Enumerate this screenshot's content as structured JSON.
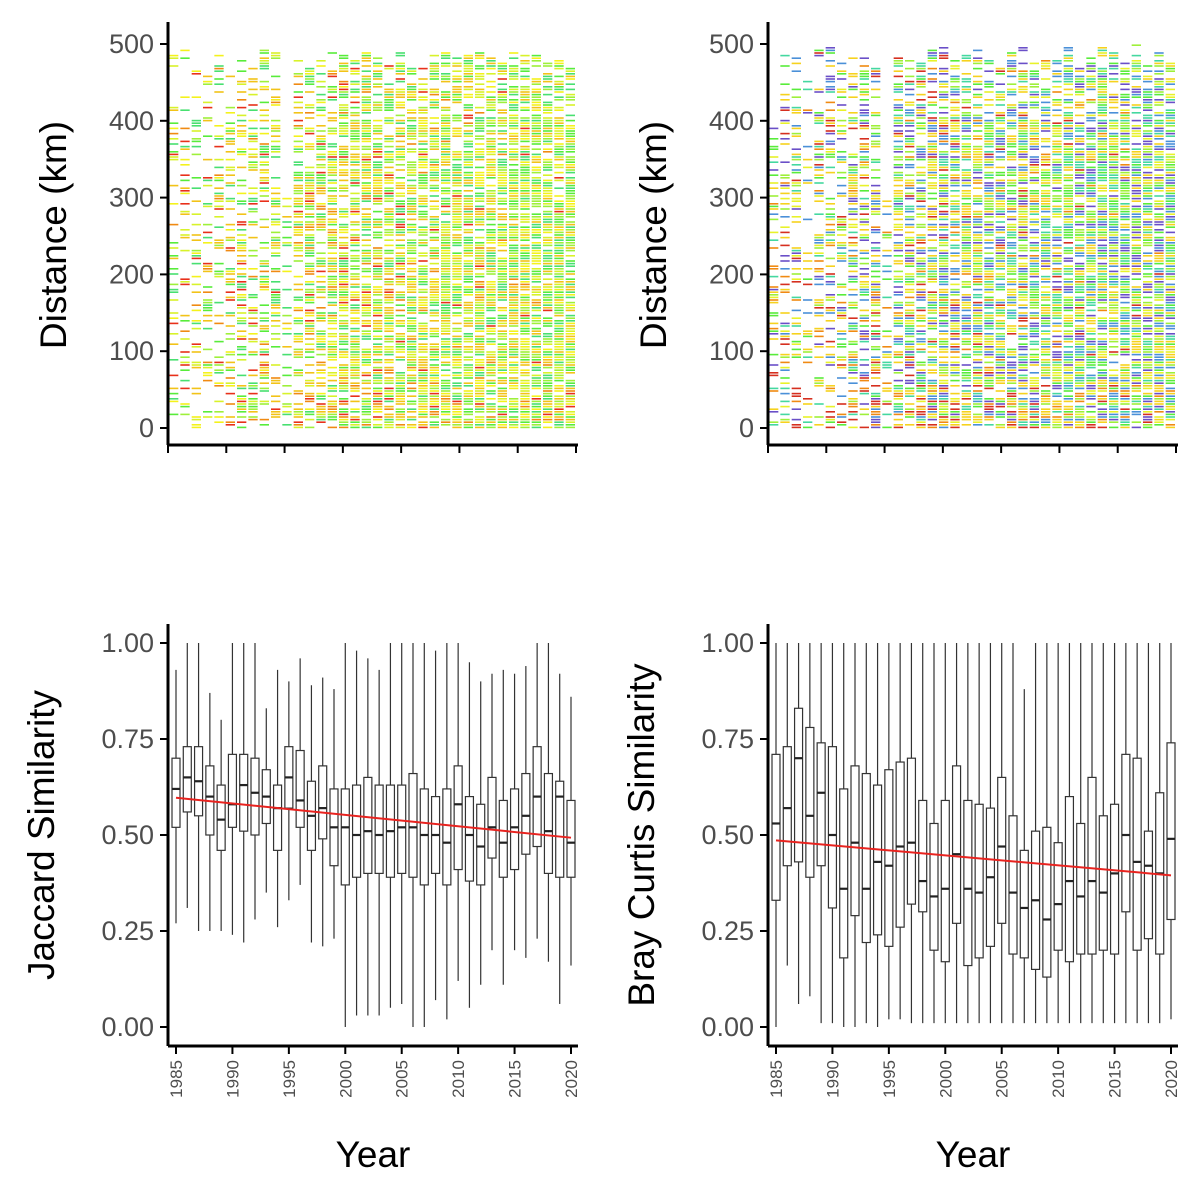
{
  "chart_data": [
    {
      "id": "distance-jaccard-tiles",
      "type": "heatmap",
      "ylabel": "Distance (km)",
      "xlabel": "",
      "x_range": [
        1985,
        2020
      ],
      "ylim": [
        0,
        500
      ],
      "y_ticks": [
        0,
        100,
        200,
        300,
        400,
        500
      ],
      "x_ticks": [
        1985,
        1990,
        1995,
        2000,
        2005,
        2010,
        2015,
        2020
      ],
      "palette": [
        "#e8301a",
        "#f08a12",
        "#f2c318",
        "#f4f21c",
        "#d8f22a",
        "#9ef03a",
        "#58ec3a",
        "#48e070"
      ],
      "density_by_year": [
        0.3,
        0.34,
        0.36,
        0.22,
        0.4,
        0.38,
        0.44,
        0.48,
        0.52,
        0.5,
        0.3,
        0.62,
        0.64,
        0.68,
        0.7,
        0.74,
        0.76,
        0.78,
        0.78,
        0.8,
        0.8,
        0.82,
        0.82,
        0.82,
        0.84,
        0.84,
        0.84,
        0.85,
        0.85,
        0.86,
        0.86,
        0.86,
        0.86,
        0.87,
        0.87,
        0.87
      ],
      "gap": {
        "year": 1995,
        "from_km": 300,
        "to_km": 500
      }
    },
    {
      "id": "distance-braycurtis-tiles",
      "type": "heatmap",
      "ylabel": "Distance (km)",
      "xlabel": "",
      "x_range": [
        1985,
        2020
      ],
      "ylim": [
        0,
        500
      ],
      "y_ticks": [
        0,
        100,
        200,
        300,
        400,
        500
      ],
      "x_ticks": [
        1985,
        1990,
        1995,
        2000,
        2005,
        2010,
        2015,
        2020
      ],
      "palette": [
        "#d62f1f",
        "#f08a12",
        "#f6d21e",
        "#e8f22a",
        "#9ef03a",
        "#58ec3a",
        "#44d8a0",
        "#4a90d8",
        "#6a4fc8"
      ],
      "density_by_year": [
        0.38,
        0.42,
        0.44,
        0.26,
        0.46,
        0.46,
        0.52,
        0.56,
        0.6,
        0.58,
        0.34,
        0.68,
        0.7,
        0.74,
        0.76,
        0.78,
        0.8,
        0.8,
        0.82,
        0.82,
        0.83,
        0.84,
        0.84,
        0.84,
        0.85,
        0.85,
        0.86,
        0.86,
        0.86,
        0.87,
        0.87,
        0.87,
        0.88,
        0.88,
        0.88,
        0.88
      ],
      "gap": {
        "year": 1995,
        "from_km": 300,
        "to_km": 500
      }
    },
    {
      "id": "jaccard-boxplot",
      "type": "box",
      "ylabel": "Jaccard Similarity",
      "xlabel": "Year",
      "ylim": [
        0,
        1
      ],
      "y_ticks": [
        "0.00",
        "0.25",
        "0.50",
        "0.75",
        "1.00"
      ],
      "x_ticks": [
        "1985",
        "1990",
        "1995",
        "2000",
        "2005",
        "2010",
        "2015",
        "2020"
      ],
      "trend_color": "#e8231f",
      "trend": {
        "x": [
          1985,
          2020
        ],
        "y": [
          0.597,
          0.493
        ]
      },
      "boxes": [
        {
          "year": 1985,
          "q1": 0.52,
          "median": 0.62,
          "q3": 0.7,
          "min": 0.27,
          "max": 0.93
        },
        {
          "year": 1986,
          "q1": 0.56,
          "median": 0.65,
          "q3": 0.73,
          "min": 0.31,
          "max": 1.0
        },
        {
          "year": 1987,
          "q1": 0.55,
          "median": 0.64,
          "q3": 0.73,
          "min": 0.25,
          "max": 1.0
        },
        {
          "year": 1988,
          "q1": 0.5,
          "median": 0.6,
          "q3": 0.68,
          "min": 0.25,
          "max": 0.87
        },
        {
          "year": 1989,
          "q1": 0.46,
          "median": 0.54,
          "q3": 0.63,
          "min": 0.25,
          "max": 0.8
        },
        {
          "year": 1990,
          "q1": 0.52,
          "median": 0.58,
          "q3": 0.71,
          "min": 0.24,
          "max": 1.0
        },
        {
          "year": 1991,
          "q1": 0.51,
          "median": 0.63,
          "q3": 0.71,
          "min": 0.22,
          "max": 1.0
        },
        {
          "year": 1992,
          "q1": 0.5,
          "median": 0.61,
          "q3": 0.7,
          "min": 0.28,
          "max": 1.0
        },
        {
          "year": 1993,
          "q1": 0.53,
          "median": 0.6,
          "q3": 0.67,
          "min": 0.35,
          "max": 0.83
        },
        {
          "year": 1994,
          "q1": 0.46,
          "median": 0.57,
          "q3": 0.63,
          "min": 0.26,
          "max": 0.93
        },
        {
          "year": 1995,
          "q1": 0.57,
          "median": 0.65,
          "q3": 0.73,
          "min": 0.33,
          "max": 0.9
        },
        {
          "year": 1996,
          "q1": 0.52,
          "median": 0.59,
          "q3": 0.72,
          "min": 0.37,
          "max": 0.96
        },
        {
          "year": 1997,
          "q1": 0.46,
          "median": 0.55,
          "q3": 0.64,
          "min": 0.22,
          "max": 0.89
        },
        {
          "year": 1998,
          "q1": 0.49,
          "median": 0.57,
          "q3": 0.68,
          "min": 0.21,
          "max": 0.91
        },
        {
          "year": 1999,
          "q1": 0.42,
          "median": 0.52,
          "q3": 0.62,
          "min": 0.23,
          "max": 0.88
        },
        {
          "year": 2000,
          "q1": 0.37,
          "median": 0.52,
          "q3": 0.62,
          "min": 0.0,
          "max": 1.0
        },
        {
          "year": 2001,
          "q1": 0.39,
          "median": 0.5,
          "q3": 0.63,
          "min": 0.03,
          "max": 0.98
        },
        {
          "year": 2002,
          "q1": 0.4,
          "median": 0.51,
          "q3": 0.65,
          "min": 0.03,
          "max": 0.96
        },
        {
          "year": 2003,
          "q1": 0.4,
          "median": 0.5,
          "q3": 0.63,
          "min": 0.03,
          "max": 0.93
        },
        {
          "year": 2004,
          "q1": 0.39,
          "median": 0.51,
          "q3": 0.63,
          "min": 0.05,
          "max": 1.0
        },
        {
          "year": 2005,
          "q1": 0.4,
          "median": 0.52,
          "q3": 0.63,
          "min": 0.06,
          "max": 1.0
        },
        {
          "year": 2006,
          "q1": 0.39,
          "median": 0.52,
          "q3": 0.66,
          "min": 0.0,
          "max": 1.0
        },
        {
          "year": 2007,
          "q1": 0.37,
          "median": 0.5,
          "q3": 0.62,
          "min": 0.0,
          "max": 1.0
        },
        {
          "year": 2008,
          "q1": 0.4,
          "median": 0.5,
          "q3": 0.6,
          "min": 0.07,
          "max": 0.98
        },
        {
          "year": 2009,
          "q1": 0.37,
          "median": 0.48,
          "q3": 0.62,
          "min": 0.02,
          "max": 1.0
        },
        {
          "year": 2010,
          "q1": 0.41,
          "median": 0.58,
          "q3": 0.68,
          "min": 0.12,
          "max": 1.0
        },
        {
          "year": 2011,
          "q1": 0.38,
          "median": 0.5,
          "q3": 0.6,
          "min": 0.05,
          "max": 0.95
        },
        {
          "year": 2012,
          "q1": 0.37,
          "median": 0.47,
          "q3": 0.58,
          "min": 0.11,
          "max": 0.9
        },
        {
          "year": 2013,
          "q1": 0.44,
          "median": 0.52,
          "q3": 0.65,
          "min": 0.2,
          "max": 0.92
        },
        {
          "year": 2014,
          "q1": 0.39,
          "median": 0.48,
          "q3": 0.59,
          "min": 0.11,
          "max": 0.93
        },
        {
          "year": 2015,
          "q1": 0.41,
          "median": 0.52,
          "q3": 0.62,
          "min": 0.2,
          "max": 0.92
        },
        {
          "year": 2016,
          "q1": 0.45,
          "median": 0.55,
          "q3": 0.66,
          "min": 0.18,
          "max": 0.94
        },
        {
          "year": 2017,
          "q1": 0.47,
          "median": 0.6,
          "q3": 0.73,
          "min": 0.23,
          "max": 1.0
        },
        {
          "year": 2018,
          "q1": 0.4,
          "median": 0.51,
          "q3": 0.66,
          "min": 0.17,
          "max": 1.0
        },
        {
          "year": 2019,
          "q1": 0.39,
          "median": 0.6,
          "q3": 0.64,
          "min": 0.06,
          "max": 0.92
        },
        {
          "year": 2020,
          "q1": 0.39,
          "median": 0.48,
          "q3": 0.59,
          "min": 0.16,
          "max": 0.86
        }
      ]
    },
    {
      "id": "braycurtis-boxplot",
      "type": "box",
      "ylabel": "Bray Curtis Similarity",
      "xlabel": "Year",
      "ylim": [
        0,
        1
      ],
      "y_ticks": [
        "0.00",
        "0.25",
        "0.50",
        "0.75",
        "1.00"
      ],
      "x_ticks": [
        "1985",
        "1990",
        "1995",
        "2000",
        "2005",
        "2010",
        "2015",
        "2020"
      ],
      "trend_color": "#e8231f",
      "trend": {
        "x": [
          1985,
          2020
        ],
        "y": [
          0.486,
          0.395
        ]
      },
      "boxes": [
        {
          "year": 1985,
          "q1": 0.33,
          "median": 0.53,
          "q3": 0.71,
          "min": 0.0,
          "max": 1.0
        },
        {
          "year": 1986,
          "q1": 0.42,
          "median": 0.57,
          "q3": 0.73,
          "min": 0.16,
          "max": 1.0
        },
        {
          "year": 1987,
          "q1": 0.43,
          "median": 0.7,
          "q3": 0.83,
          "min": 0.06,
          "max": 1.0
        },
        {
          "year": 1988,
          "q1": 0.39,
          "median": 0.55,
          "q3": 0.78,
          "min": 0.08,
          "max": 1.0
        },
        {
          "year": 1989,
          "q1": 0.42,
          "median": 0.61,
          "q3": 0.74,
          "min": 0.01,
          "max": 1.0
        },
        {
          "year": 1990,
          "q1": 0.31,
          "median": 0.5,
          "q3": 0.73,
          "min": 0.01,
          "max": 1.0
        },
        {
          "year": 1991,
          "q1": 0.18,
          "median": 0.36,
          "q3": 0.62,
          "min": 0.0,
          "max": 1.0
        },
        {
          "year": 1992,
          "q1": 0.29,
          "median": 0.48,
          "q3": 0.68,
          "min": 0.0,
          "max": 1.0
        },
        {
          "year": 1993,
          "q1": 0.22,
          "median": 0.36,
          "q3": 0.66,
          "min": 0.01,
          "max": 1.0
        },
        {
          "year": 1994,
          "q1": 0.24,
          "median": 0.43,
          "q3": 0.63,
          "min": 0.0,
          "max": 1.0
        },
        {
          "year": 1995,
          "q1": 0.21,
          "median": 0.42,
          "q3": 0.67,
          "min": 0.02,
          "max": 1.0
        },
        {
          "year": 1996,
          "q1": 0.26,
          "median": 0.47,
          "q3": 0.69,
          "min": 0.02,
          "max": 1.0
        },
        {
          "year": 1997,
          "q1": 0.32,
          "median": 0.48,
          "q3": 0.7,
          "min": 0.01,
          "max": 1.0
        },
        {
          "year": 1998,
          "q1": 0.3,
          "median": 0.38,
          "q3": 0.59,
          "min": 0.01,
          "max": 1.0
        },
        {
          "year": 1999,
          "q1": 0.2,
          "median": 0.34,
          "q3": 0.53,
          "min": 0.01,
          "max": 1.0
        },
        {
          "year": 2000,
          "q1": 0.17,
          "median": 0.36,
          "q3": 0.59,
          "min": 0.01,
          "max": 1.0
        },
        {
          "year": 2001,
          "q1": 0.27,
          "median": 0.45,
          "q3": 0.68,
          "min": 0.01,
          "max": 1.0
        },
        {
          "year": 2002,
          "q1": 0.16,
          "median": 0.36,
          "q3": 0.59,
          "min": 0.01,
          "max": 1.0
        },
        {
          "year": 2003,
          "q1": 0.18,
          "median": 0.35,
          "q3": 0.58,
          "min": 0.01,
          "max": 1.0
        },
        {
          "year": 2004,
          "q1": 0.21,
          "median": 0.39,
          "q3": 0.57,
          "min": 0.01,
          "max": 1.0
        },
        {
          "year": 2005,
          "q1": 0.27,
          "median": 0.47,
          "q3": 0.65,
          "min": 0.01,
          "max": 1.0
        },
        {
          "year": 2006,
          "q1": 0.19,
          "median": 0.35,
          "q3": 0.55,
          "min": 0.01,
          "max": 1.0
        },
        {
          "year": 2007,
          "q1": 0.18,
          "median": 0.31,
          "q3": 0.46,
          "min": 0.01,
          "max": 0.88
        },
        {
          "year": 2008,
          "q1": 0.15,
          "median": 0.33,
          "q3": 0.51,
          "min": 0.01,
          "max": 1.0
        },
        {
          "year": 2009,
          "q1": 0.13,
          "median": 0.28,
          "q3": 0.52,
          "min": 0.01,
          "max": 1.0
        },
        {
          "year": 2010,
          "q1": 0.2,
          "median": 0.32,
          "q3": 0.48,
          "min": 0.01,
          "max": 1.0
        },
        {
          "year": 2011,
          "q1": 0.17,
          "median": 0.38,
          "q3": 0.6,
          "min": 0.01,
          "max": 1.0
        },
        {
          "year": 2012,
          "q1": 0.19,
          "median": 0.34,
          "q3": 0.53,
          "min": 0.01,
          "max": 1.0
        },
        {
          "year": 2013,
          "q1": 0.19,
          "median": 0.38,
          "q3": 0.65,
          "min": 0.01,
          "max": 1.0
        },
        {
          "year": 2014,
          "q1": 0.2,
          "median": 0.35,
          "q3": 0.55,
          "min": 0.01,
          "max": 1.0
        },
        {
          "year": 2015,
          "q1": 0.19,
          "median": 0.4,
          "q3": 0.58,
          "min": 0.01,
          "max": 1.0
        },
        {
          "year": 2016,
          "q1": 0.3,
          "median": 0.5,
          "q3": 0.71,
          "min": 0.01,
          "max": 1.0
        },
        {
          "year": 2017,
          "q1": 0.2,
          "median": 0.43,
          "q3": 0.7,
          "min": 0.01,
          "max": 1.0
        },
        {
          "year": 2018,
          "q1": 0.23,
          "median": 0.42,
          "q3": 0.51,
          "min": 0.01,
          "max": 1.0
        },
        {
          "year": 2019,
          "q1": 0.19,
          "median": 0.4,
          "q3": 0.61,
          "min": 0.01,
          "max": 1.0
        },
        {
          "year": 2020,
          "q1": 0.28,
          "median": 0.49,
          "q3": 0.74,
          "min": 0.02,
          "max": 1.0
        }
      ]
    }
  ]
}
